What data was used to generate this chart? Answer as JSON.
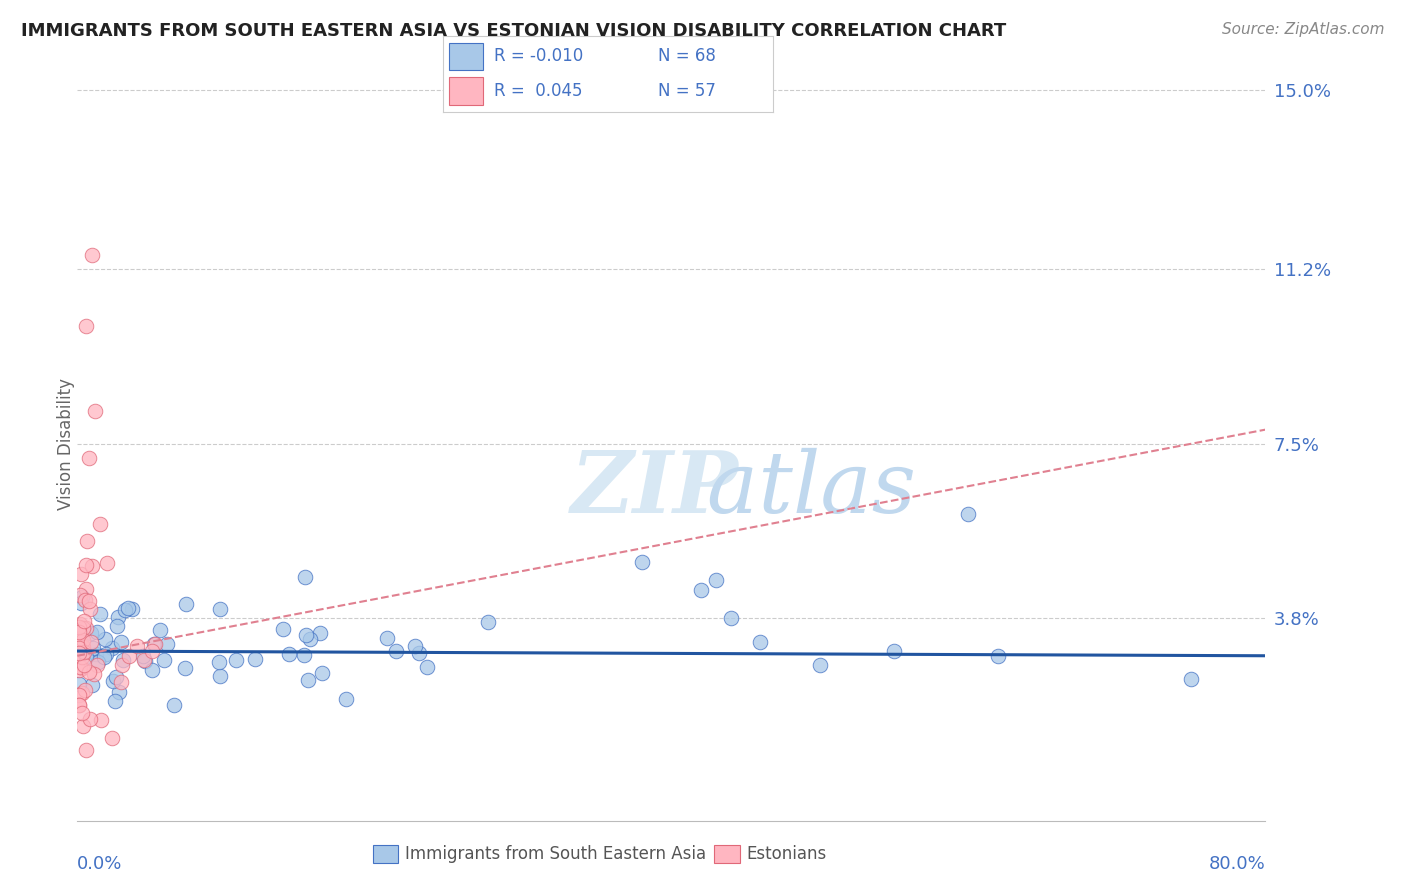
{
  "title": "IMMIGRANTS FROM SOUTH EASTERN ASIA VS ESTONIAN VISION DISABILITY CORRELATION CHART",
  "source": "Source: ZipAtlas.com",
  "ylabel": "Vision Disability",
  "xmin": 0.0,
  "xmax": 0.8,
  "ymin": -0.005,
  "ymax": 0.155,
  "ytick_vals": [
    0.038,
    0.075,
    0.112,
    0.15
  ],
  "ytick_labels": [
    "3.8%",
    "7.5%",
    "11.2%",
    "15.0%"
  ],
  "blue_color": "#a8c8e8",
  "blue_edge_color": "#4472c4",
  "pink_color": "#ffb6c1",
  "pink_edge_color": "#e06878",
  "blue_line_color": "#2155a0",
  "pink_line_color": "#e08090",
  "watermark_zip_color": "#d8e8f4",
  "watermark_atlas_color": "#c0d8ee",
  "title_color": "#222222",
  "source_color": "#888888",
  "tick_label_color": "#4472c4",
  "legend_r_color": "#4472c4",
  "legend_pink_r_color": "#e06878",
  "ylabel_color": "#666666",
  "bottom_label_color": "#555555",
  "blue_trend_y0": 0.031,
  "blue_trend_y1": 0.03,
  "pink_trend_x0": 0.0,
  "pink_trend_x1": 0.8,
  "pink_trend_y0": 0.03,
  "pink_trend_y1": 0.078
}
